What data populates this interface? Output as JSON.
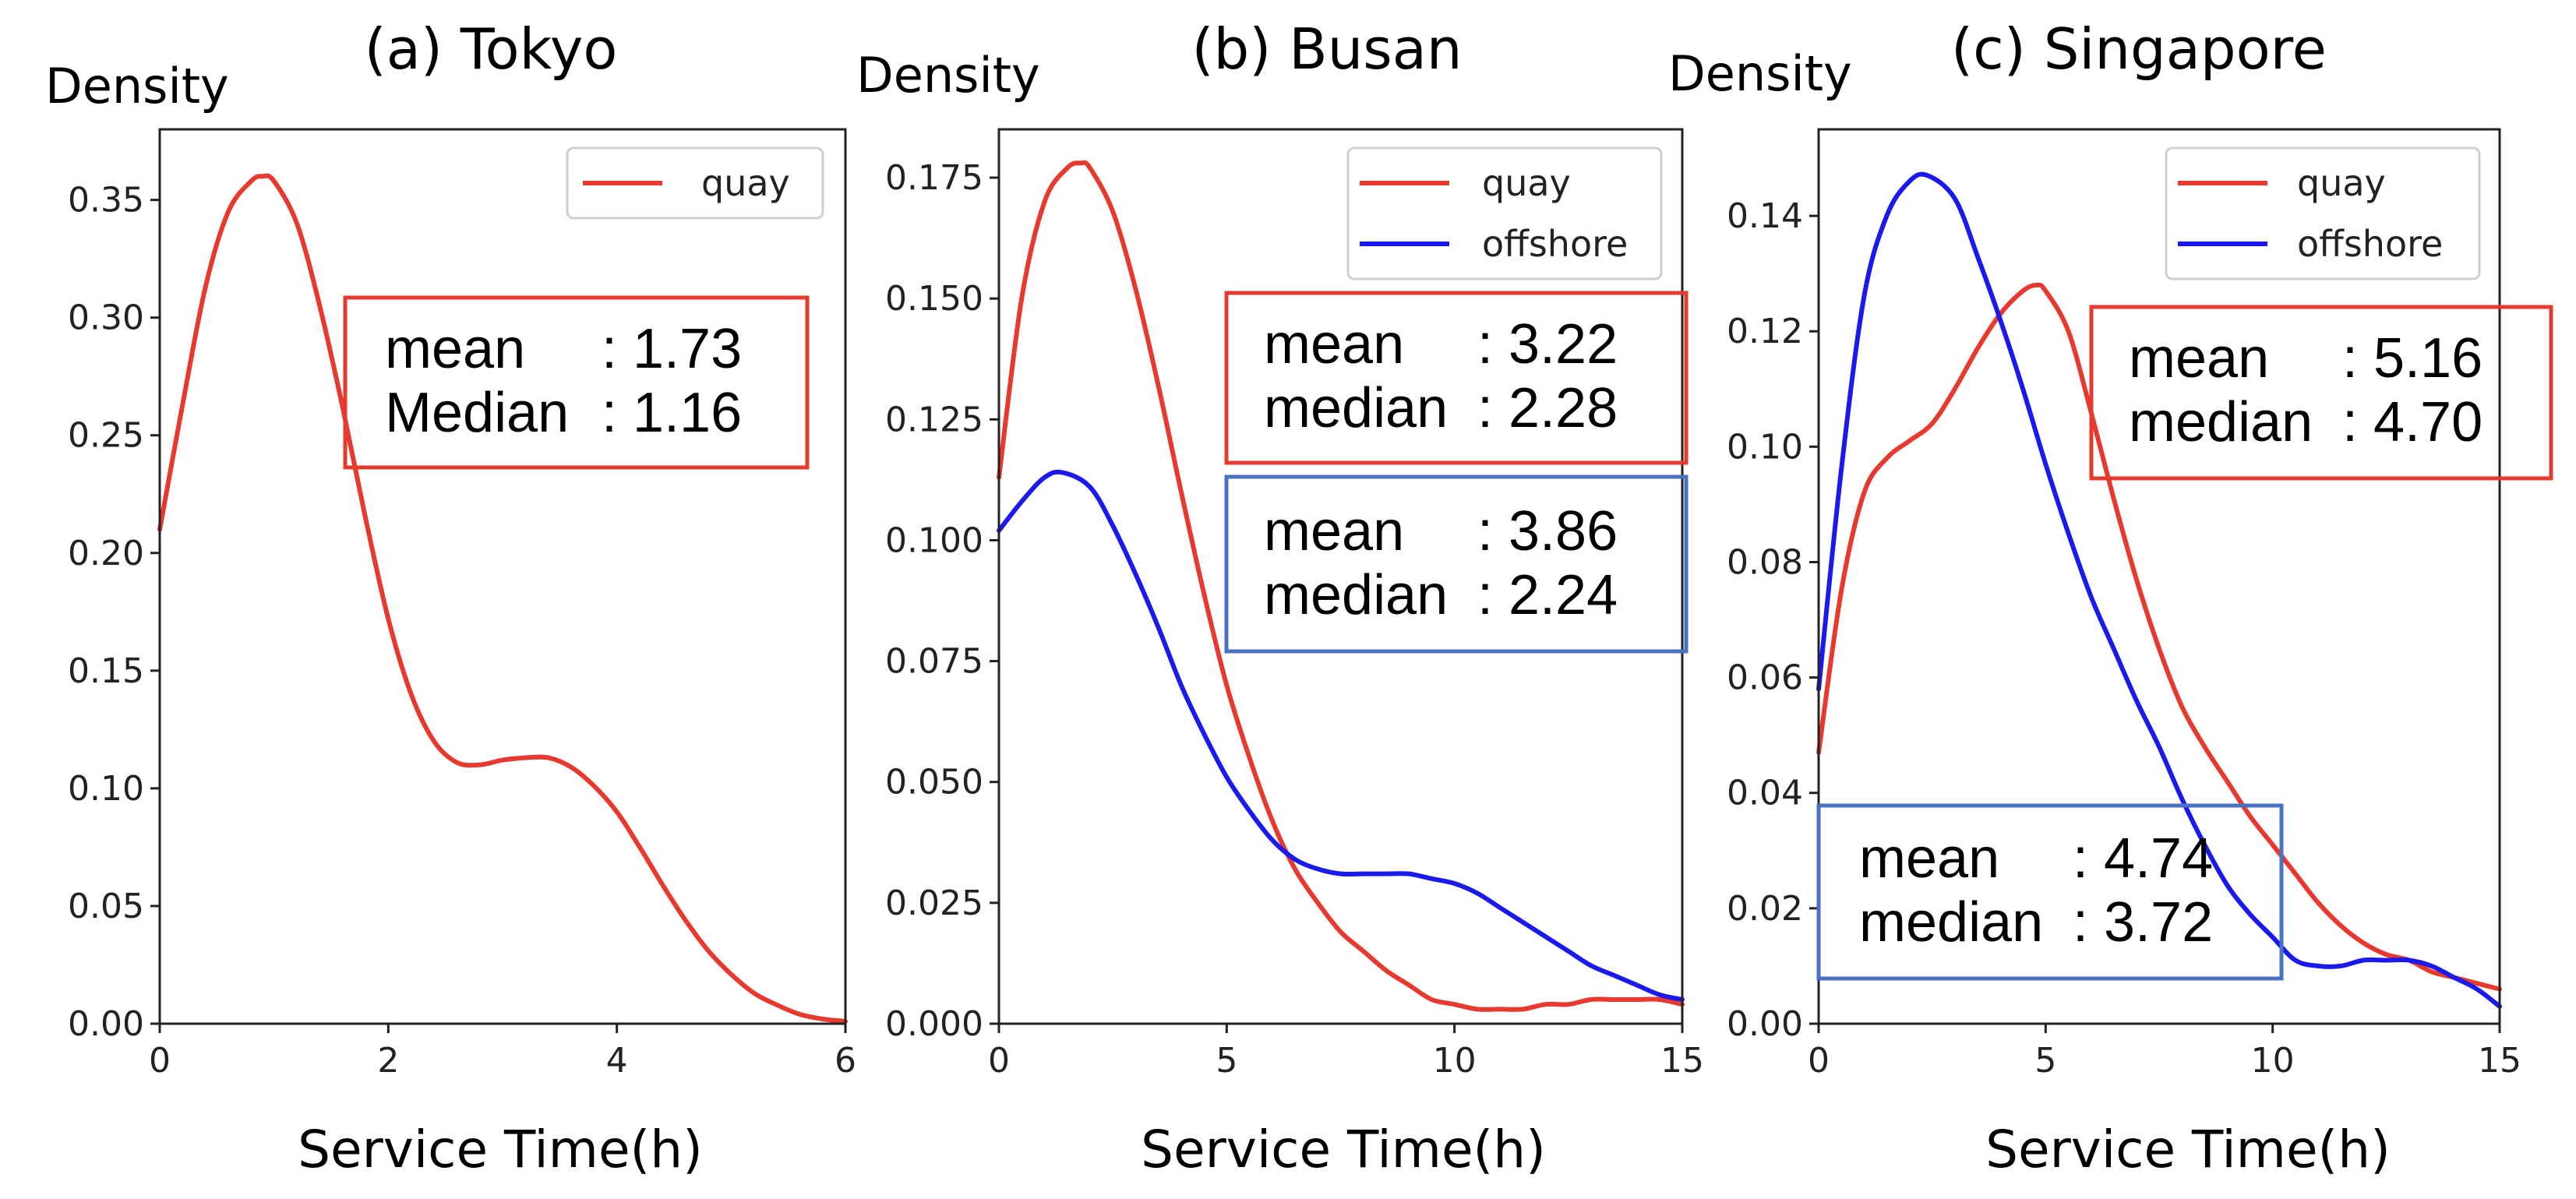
{
  "chart_data": [
    {
      "type": "line",
      "title": "(a) Tokyo",
      "xlabel": "Service Time(h)",
      "ylabel": "Density",
      "xlim": [
        0,
        6
      ],
      "ylim": [
        0,
        0.38
      ],
      "xticks": [
        "0",
        "2",
        "4",
        "6"
      ],
      "yticks": [
        "0.00",
        "0.05",
        "0.10",
        "0.15",
        "0.20",
        "0.25",
        "0.30",
        "0.35"
      ],
      "legend_position": "top-right",
      "series": [
        {
          "name": "quay",
          "color": "#e8392f",
          "x": [
            0,
            0.2,
            0.4,
            0.6,
            0.8,
            0.9,
            1.0,
            1.2,
            1.4,
            1.6,
            1.8,
            2.0,
            2.2,
            2.4,
            2.6,
            2.8,
            3.0,
            3.2,
            3.4,
            3.6,
            3.8,
            4.0,
            4.2,
            4.4,
            4.6,
            4.8,
            5.0,
            5.2,
            5.4,
            5.6,
            5.8,
            6.0
          ],
          "y": [
            0.21,
            0.263,
            0.313,
            0.345,
            0.358,
            0.36,
            0.358,
            0.34,
            0.305,
            0.262,
            0.215,
            0.172,
            0.14,
            0.12,
            0.111,
            0.11,
            0.112,
            0.113,
            0.113,
            0.109,
            0.101,
            0.09,
            0.075,
            0.059,
            0.044,
            0.031,
            0.021,
            0.013,
            0.008,
            0.004,
            0.002,
            0.001
          ]
        }
      ],
      "annotations": [
        {
          "box_color": "#e8392f",
          "lines": [
            [
              "mean",
              ": 1.73"
            ],
            [
              "Median",
              ": 1.16"
            ]
          ]
        }
      ]
    },
    {
      "type": "line",
      "title": "(b) Busan",
      "xlabel": "Service Time(h)",
      "ylabel": "Density",
      "xlim": [
        0,
        15
      ],
      "ylim": [
        0,
        0.185
      ],
      "xticks": [
        "0",
        "5",
        "10",
        "15"
      ],
      "yticks": [
        "0.000",
        "0.025",
        "0.050",
        "0.075",
        "0.100",
        "0.125",
        "0.150",
        "0.175"
      ],
      "legend_position": "top-right",
      "series": [
        {
          "name": "quay",
          "color": "#e8392f",
          "x": [
            0,
            0.5,
            1.0,
            1.5,
            1.8,
            2.0,
            2.5,
            3.0,
            3.5,
            4.0,
            4.5,
            5.0,
            5.5,
            6.0,
            6.5,
            7.0,
            7.5,
            8.0,
            8.5,
            9.0,
            9.5,
            10.0,
            10.5,
            11.0,
            11.5,
            12.0,
            12.5,
            13.0,
            13.5,
            14.0,
            14.5,
            15.0
          ],
          "y": [
            0.113,
            0.15,
            0.17,
            0.177,
            0.178,
            0.177,
            0.168,
            0.152,
            0.132,
            0.11,
            0.089,
            0.07,
            0.055,
            0.042,
            0.032,
            0.025,
            0.019,
            0.015,
            0.011,
            0.008,
            0.005,
            0.004,
            0.003,
            0.003,
            0.003,
            0.004,
            0.004,
            0.005,
            0.005,
            0.005,
            0.005,
            0.004
          ]
        },
        {
          "name": "offshore",
          "color": "#1a1aee",
          "x": [
            0,
            0.5,
            1.0,
            1.4,
            2.0,
            2.5,
            3.0,
            3.5,
            4.0,
            4.5,
            5.0,
            5.5,
            6.0,
            6.5,
            7.0,
            7.5,
            8.0,
            8.5,
            9.0,
            9.5,
            10.0,
            10.5,
            11.0,
            11.5,
            12.0,
            12.5,
            13.0,
            13.5,
            14.0,
            14.5,
            15.0
          ],
          "y": [
            0.102,
            0.108,
            0.113,
            0.114,
            0.111,
            0.103,
            0.093,
            0.082,
            0.07,
            0.06,
            0.051,
            0.044,
            0.038,
            0.034,
            0.032,
            0.031,
            0.031,
            0.031,
            0.031,
            0.03,
            0.029,
            0.027,
            0.024,
            0.021,
            0.018,
            0.015,
            0.012,
            0.01,
            0.008,
            0.006,
            0.005
          ]
        }
      ],
      "annotations": [
        {
          "box_color": "#e8392f",
          "lines": [
            [
              "mean",
              ": 3.22"
            ],
            [
              "median",
              ": 2.28"
            ]
          ]
        },
        {
          "box_color": "#4a72c4",
          "lines": [
            [
              "mean",
              ": 3.86"
            ],
            [
              "median",
              ": 2.24"
            ]
          ]
        }
      ]
    },
    {
      "type": "line",
      "title": "(c) Singapore",
      "xlabel": "Service Time(h)",
      "ylabel": "Density",
      "xlim": [
        0,
        15
      ],
      "ylim": [
        0,
        0.155
      ],
      "xticks": [
        "0",
        "5",
        "10",
        "15"
      ],
      "yticks": [
        "0.00",
        "0.02",
        "0.04",
        "0.06",
        "0.08",
        "0.10",
        "0.12",
        "0.14"
      ],
      "legend_position": "top-right",
      "series": [
        {
          "name": "quay",
          "color": "#e8392f",
          "x": [
            0,
            0.5,
            1.0,
            1.5,
            2.0,
            2.5,
            3.0,
            3.5,
            4.0,
            4.5,
            4.8,
            5.0,
            5.5,
            6.0,
            6.5,
            7.0,
            7.5,
            8.0,
            8.5,
            9.0,
            9.5,
            10.0,
            10.5,
            11.0,
            11.5,
            12.0,
            12.5,
            13.0,
            13.5,
            14.0,
            14.5,
            15.0
          ],
          "y": [
            0.047,
            0.075,
            0.092,
            0.098,
            0.101,
            0.104,
            0.11,
            0.117,
            0.123,
            0.127,
            0.128,
            0.127,
            0.12,
            0.106,
            0.091,
            0.077,
            0.065,
            0.055,
            0.048,
            0.042,
            0.036,
            0.031,
            0.026,
            0.021,
            0.017,
            0.014,
            0.012,
            0.011,
            0.009,
            0.008,
            0.007,
            0.006
          ]
        },
        {
          "name": "offshore",
          "color": "#1a1aee",
          "x": [
            0,
            0.5,
            1.0,
            1.5,
            2.0,
            2.4,
            3.0,
            3.5,
            4.0,
            4.5,
            5.0,
            5.5,
            6.0,
            6.5,
            7.0,
            7.5,
            8.0,
            8.5,
            9.0,
            9.5,
            10.0,
            10.5,
            11.0,
            11.5,
            12.0,
            12.5,
            13.0,
            13.5,
            14.0,
            14.5,
            15.0
          ],
          "y": [
            0.058,
            0.096,
            0.126,
            0.14,
            0.146,
            0.147,
            0.143,
            0.133,
            0.122,
            0.11,
            0.097,
            0.085,
            0.074,
            0.065,
            0.056,
            0.048,
            0.039,
            0.031,
            0.024,
            0.019,
            0.015,
            0.011,
            0.01,
            0.01,
            0.011,
            0.011,
            0.011,
            0.01,
            0.008,
            0.006,
            0.003
          ]
        }
      ],
      "annotations": [
        {
          "box_color": "#e8392f",
          "lines": [
            [
              "mean",
              ": 5.16"
            ],
            [
              "median",
              ": 4.70"
            ]
          ]
        },
        {
          "box_color": "#4a72c4",
          "lines": [
            [
              "mean",
              ": 4.74"
            ],
            [
              "median",
              ": 3.72"
            ]
          ]
        }
      ]
    }
  ]
}
